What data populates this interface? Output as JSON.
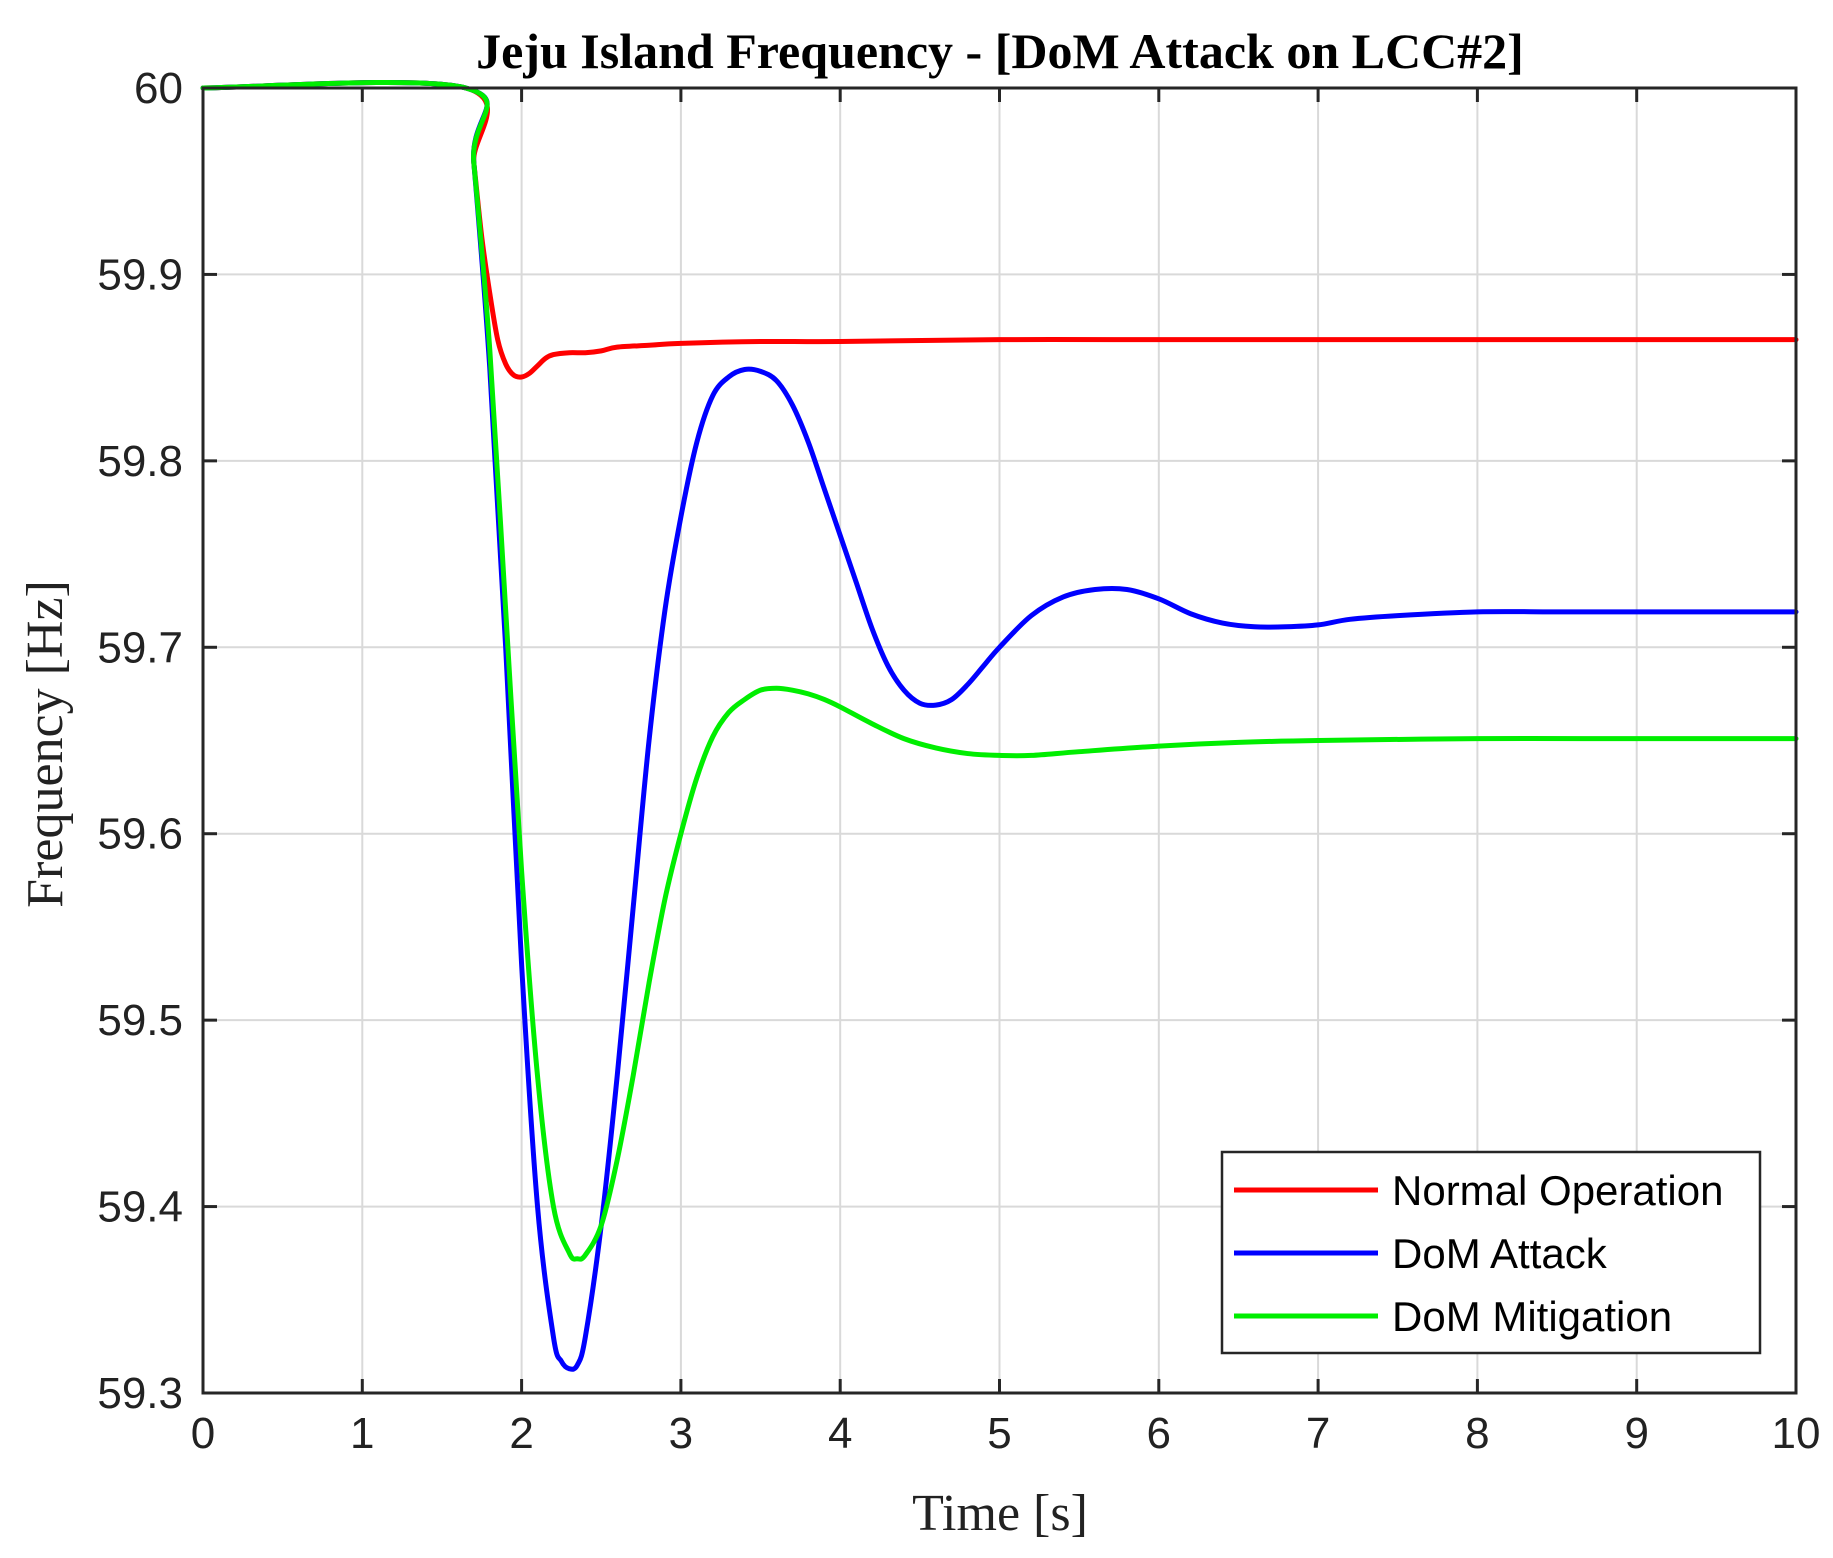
{
  "chart_data": {
    "type": "line",
    "title": "Jeju Island Frequency - [DoM Attack on LCC#2]",
    "xlabel": "Time [s]",
    "ylabel": "Frequency [Hz]",
    "xlim": [
      0,
      10
    ],
    "ylim": [
      59.3,
      60.0
    ],
    "xticks": [
      0,
      1,
      2,
      3,
      4,
      5,
      6,
      7,
      8,
      9,
      10
    ],
    "xtick_labels": [
      "0",
      "1",
      "2",
      "3",
      "4",
      "5",
      "6",
      "7",
      "8",
      "9",
      "10"
    ],
    "yticks": [
      59.3,
      59.4,
      59.5,
      59.6,
      59.7,
      59.8,
      59.9,
      60.0
    ],
    "ytick_labels": [
      "59.3",
      "59.4",
      "59.5",
      "59.6",
      "59.7",
      "59.8",
      "59.9",
      "60"
    ],
    "grid": true,
    "legend_position": "bottom-right",
    "series": [
      {
        "name": "Normal Operation",
        "color": "#ff0000",
        "x": [
          0,
          1.65,
          1.7,
          1.75,
          1.8,
          1.85,
          1.9,
          1.95,
          2.0,
          2.05,
          2.1,
          2.15,
          2.2,
          2.3,
          2.4,
          2.5,
          2.6,
          2.8,
          3.0,
          3.5,
          4.0,
          5.0,
          6.0,
          7.0,
          8.0,
          9.0,
          10.0
        ],
        "y": [
          60.0,
          60.0,
          59.96,
          59.92,
          59.89,
          59.865,
          59.852,
          59.846,
          59.845,
          59.847,
          59.851,
          59.855,
          59.857,
          59.858,
          59.858,
          59.859,
          59.861,
          59.862,
          59.863,
          59.864,
          59.864,
          59.865,
          59.865,
          59.865,
          59.865,
          59.865,
          59.865
        ]
      },
      {
        "name": "DoM Attack",
        "color": "#0000ff",
        "x": [
          0,
          1.65,
          1.7,
          1.8,
          1.9,
          2.0,
          2.1,
          2.2,
          2.25,
          2.3,
          2.35,
          2.4,
          2.5,
          2.6,
          2.7,
          2.8,
          2.9,
          3.0,
          3.1,
          3.2,
          3.3,
          3.4,
          3.5,
          3.6,
          3.7,
          3.8,
          3.9,
          4.0,
          4.1,
          4.2,
          4.3,
          4.4,
          4.5,
          4.6,
          4.7,
          4.8,
          4.9,
          5.0,
          5.2,
          5.4,
          5.6,
          5.8,
          6.0,
          6.2,
          6.4,
          6.6,
          6.8,
          7.0,
          7.2,
          7.5,
          8.0,
          8.5,
          9.0,
          10.0
        ],
        "y": [
          60.0,
          60.0,
          59.96,
          59.85,
          59.7,
          59.53,
          59.4,
          59.33,
          59.317,
          59.313,
          59.315,
          59.33,
          59.39,
          59.47,
          59.56,
          59.65,
          59.72,
          59.77,
          59.81,
          59.835,
          59.845,
          59.849,
          59.848,
          59.843,
          59.83,
          59.81,
          59.785,
          59.76,
          59.735,
          59.71,
          59.69,
          59.677,
          59.67,
          59.669,
          59.672,
          59.68,
          59.69,
          59.7,
          59.717,
          59.727,
          59.731,
          59.731,
          59.726,
          59.718,
          59.713,
          59.711,
          59.711,
          59.712,
          59.715,
          59.717,
          59.719,
          59.719,
          59.719,
          59.719
        ]
      },
      {
        "name": "DoM Mitigation",
        "color": "#00ee00",
        "x": [
          0,
          1.65,
          1.7,
          1.8,
          1.9,
          2.0,
          2.1,
          2.2,
          2.3,
          2.35,
          2.4,
          2.5,
          2.6,
          2.7,
          2.8,
          2.9,
          3.0,
          3.1,
          3.2,
          3.3,
          3.4,
          3.5,
          3.6,
          3.7,
          3.8,
          3.9,
          4.0,
          4.2,
          4.4,
          4.6,
          4.8,
          5.0,
          5.2,
          5.5,
          6.0,
          6.5,
          7.0,
          8.0,
          9.0,
          10.0
        ],
        "y": [
          60.0,
          60.0,
          59.96,
          59.86,
          59.72,
          59.58,
          59.47,
          59.4,
          59.375,
          59.372,
          59.374,
          59.39,
          59.425,
          59.47,
          59.52,
          59.565,
          59.6,
          59.63,
          59.652,
          59.665,
          59.672,
          59.677,
          59.678,
          59.677,
          59.675,
          59.672,
          59.668,
          59.659,
          59.651,
          59.646,
          59.643,
          59.642,
          59.642,
          59.644,
          59.647,
          59.649,
          59.65,
          59.651,
          59.651,
          59.651
        ]
      }
    ]
  }
}
